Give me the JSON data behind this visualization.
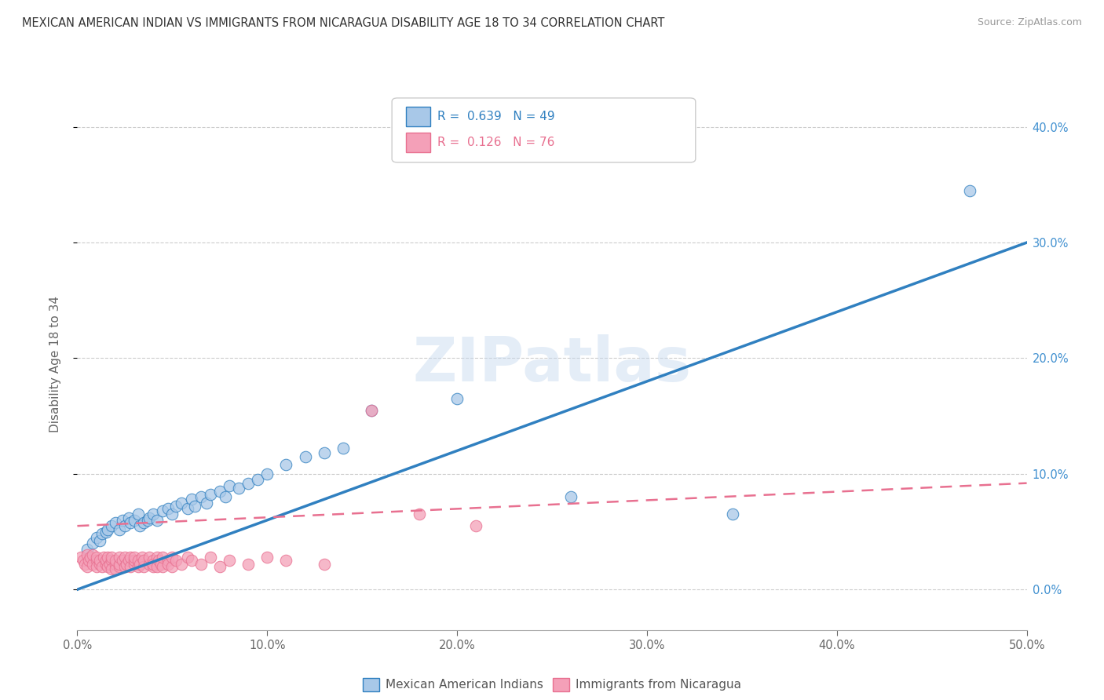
{
  "title": "MEXICAN AMERICAN INDIAN VS IMMIGRANTS FROM NICARAGUA DISABILITY AGE 18 TO 34 CORRELATION CHART",
  "source": "Source: ZipAtlas.com",
  "ylabel": "Disability Age 18 to 34",
  "legend1_label": "Mexican American Indians",
  "legend2_label": "Immigrants from Nicaragua",
  "r1": 0.639,
  "n1": 49,
  "r2": 0.126,
  "n2": 76,
  "color_blue": "#a8c8e8",
  "color_pink": "#f4a0b8",
  "line_blue": "#3080c0",
  "line_pink": "#e87090",
  "watermark": "ZIPatlas",
  "xlim": [
    0.0,
    0.5
  ],
  "ylim": [
    -0.035,
    0.425
  ],
  "yticks": [
    0.0,
    0.1,
    0.2,
    0.3,
    0.4
  ],
  "xticks": [
    0.0,
    0.1,
    0.2,
    0.3,
    0.4,
    0.5
  ],
  "blue_line_x0": 0.0,
  "blue_line_y0": 0.0,
  "blue_line_x1": 0.5,
  "blue_line_y1": 0.3,
  "pink_line_x0": 0.0,
  "pink_line_y0": 0.055,
  "pink_line_x1": 0.5,
  "pink_line_y1": 0.092,
  "blue_x": [
    0.005,
    0.008,
    0.01,
    0.012,
    0.013,
    0.015,
    0.016,
    0.018,
    0.02,
    0.022,
    0.024,
    0.025,
    0.027,
    0.028,
    0.03,
    0.032,
    0.033,
    0.035,
    0.037,
    0.038,
    0.04,
    0.042,
    0.045,
    0.048,
    0.05,
    0.052,
    0.055,
    0.058,
    0.06,
    0.062,
    0.065,
    0.068,
    0.07,
    0.075,
    0.078,
    0.08,
    0.085,
    0.09,
    0.095,
    0.1,
    0.11,
    0.12,
    0.13,
    0.14,
    0.155,
    0.2,
    0.26,
    0.345,
    0.47
  ],
  "blue_y": [
    0.035,
    0.04,
    0.045,
    0.042,
    0.048,
    0.05,
    0.052,
    0.055,
    0.058,
    0.052,
    0.06,
    0.055,
    0.062,
    0.058,
    0.06,
    0.065,
    0.055,
    0.058,
    0.06,
    0.062,
    0.065,
    0.06,
    0.068,
    0.07,
    0.065,
    0.072,
    0.075,
    0.07,
    0.078,
    0.072,
    0.08,
    0.075,
    0.082,
    0.085,
    0.08,
    0.09,
    0.088,
    0.092,
    0.095,
    0.1,
    0.108,
    0.115,
    0.118,
    0.122,
    0.155,
    0.165,
    0.08,
    0.065,
    0.345
  ],
  "pink_x": [
    0.002,
    0.003,
    0.004,
    0.005,
    0.005,
    0.006,
    0.007,
    0.008,
    0.008,
    0.01,
    0.01,
    0.01,
    0.012,
    0.012,
    0.013,
    0.014,
    0.015,
    0.015,
    0.016,
    0.016,
    0.017,
    0.018,
    0.018,
    0.018,
    0.02,
    0.02,
    0.02,
    0.022,
    0.022,
    0.022,
    0.024,
    0.025,
    0.025,
    0.026,
    0.027,
    0.028,
    0.028,
    0.03,
    0.03,
    0.03,
    0.032,
    0.032,
    0.033,
    0.034,
    0.035,
    0.035,
    0.038,
    0.038,
    0.04,
    0.04,
    0.04,
    0.042,
    0.042,
    0.043,
    0.044,
    0.045,
    0.045,
    0.048,
    0.048,
    0.05,
    0.05,
    0.052,
    0.055,
    0.058,
    0.06,
    0.065,
    0.07,
    0.075,
    0.08,
    0.09,
    0.1,
    0.11,
    0.13,
    0.155,
    0.18,
    0.21
  ],
  "pink_y": [
    0.028,
    0.025,
    0.022,
    0.03,
    0.02,
    0.025,
    0.028,
    0.022,
    0.03,
    0.025,
    0.02,
    0.028,
    0.022,
    0.025,
    0.02,
    0.028,
    0.022,
    0.025,
    0.02,
    0.028,
    0.022,
    0.025,
    0.018,
    0.028,
    0.022,
    0.018,
    0.025,
    0.02,
    0.022,
    0.028,
    0.025,
    0.02,
    0.028,
    0.022,
    0.025,
    0.02,
    0.028,
    0.022,
    0.025,
    0.028,
    0.02,
    0.025,
    0.022,
    0.028,
    0.02,
    0.025,
    0.022,
    0.028,
    0.02,
    0.025,
    0.022,
    0.028,
    0.02,
    0.025,
    0.022,
    0.02,
    0.028,
    0.025,
    0.022,
    0.02,
    0.028,
    0.025,
    0.022,
    0.028,
    0.025,
    0.022,
    0.028,
    0.02,
    0.025,
    0.022,
    0.028,
    0.025,
    0.022,
    0.155,
    0.065,
    0.055
  ]
}
